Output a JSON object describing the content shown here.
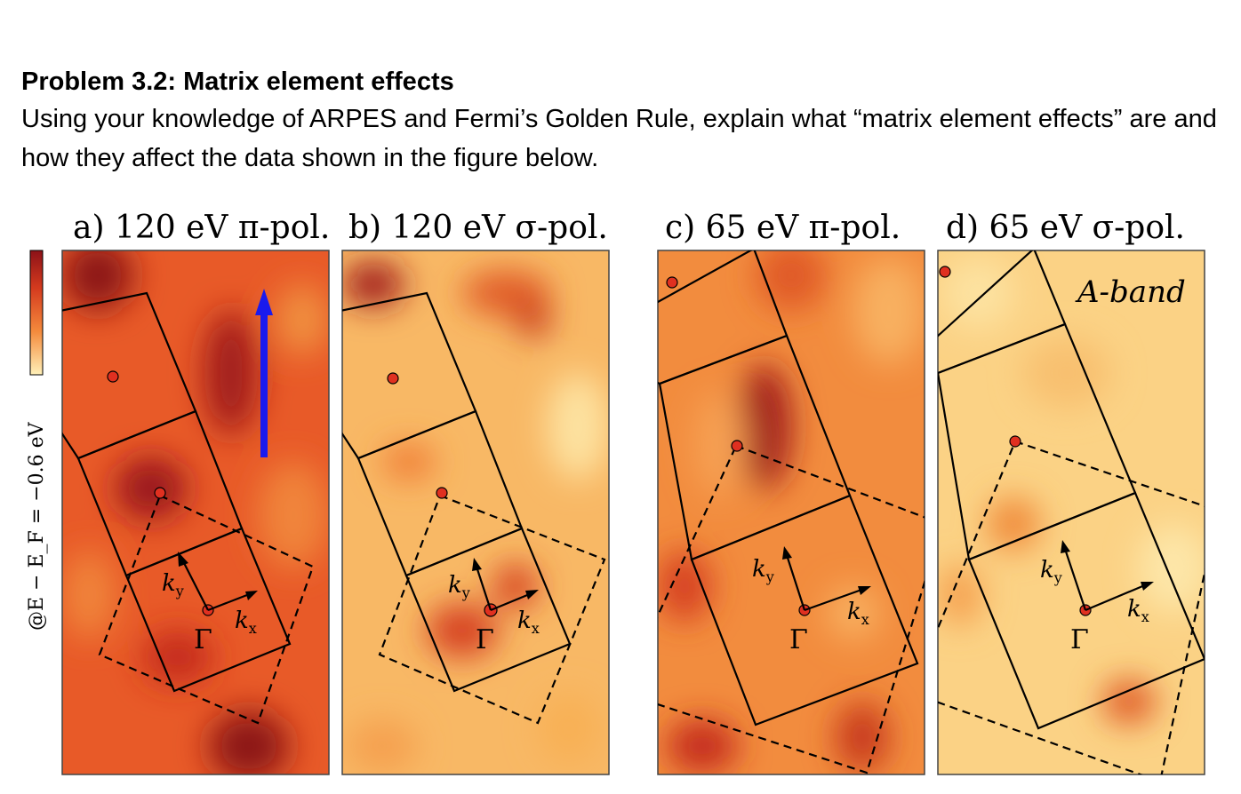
{
  "problem": {
    "title": "Problem 3.2: Matrix element effects",
    "body": "Using your knowledge of ARPES and Fermi’s Golden Rule, explain what “matrix element effects” are and how they affect the data shown in the figure below."
  },
  "figure": {
    "colorbar_label": "@E − E_F = −0.6 eV",
    "panels": [
      {
        "label": "a) 120 eV π-pol.",
        "kx": "k",
        "kx_sub": "x",
        "ky": "k",
        "ky_sub": "y",
        "gamma": "Γ"
      },
      {
        "label": "b) 120 eV σ-pol.",
        "kx": "k",
        "kx_sub": "x",
        "ky": "k",
        "ky_sub": "y",
        "gamma": "Γ"
      },
      {
        "label": "c) 65 eV π-pol.",
        "kx": "k",
        "kx_sub": "x",
        "ky": "k",
        "ky_sub": "y",
        "gamma": "Γ"
      },
      {
        "label": "d) 65 eV σ-pol.",
        "kx": "k",
        "kx_sub": "x",
        "ky": "k",
        "ky_sub": "y",
        "gamma": "Γ",
        "annotation": "A-band"
      }
    ],
    "colors": {
      "low": "#fff0b8",
      "mid": "#f48a3c",
      "high": "#d43a1e",
      "max": "#8c1218",
      "arrow": "#1a1aee",
      "marker": "#e03020"
    }
  }
}
